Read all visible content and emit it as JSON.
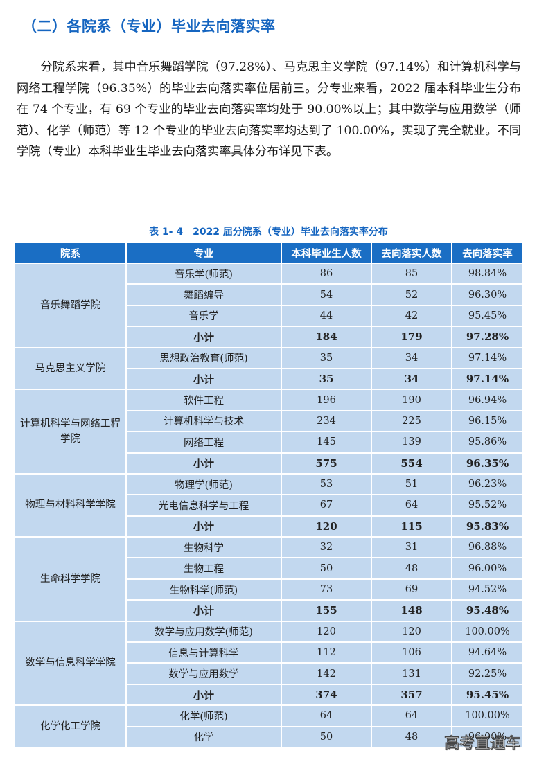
{
  "heading": "（二）各院系（专业）毕业去向落实率",
  "paragraph": "分院系来看，其中音乐舞蹈学院（97.28%）、马克思主义学院（97.14%）和计算机科学与网络工程学院（96.35%）的毕业去向落实率位居前三。分专业来看，2022 届本科毕业生分布在 74 个专业，有 69 个专业的毕业去向落实率均处于 90.00%以上；其中数学与应用数学（师范）、化学（师范）等 12 个专业的毕业去向落实率均达到了 100.00%，实现了完全就业。不同学院（专业）本科毕业生毕业去向落实率具体分布详见下表。",
  "table": {
    "caption": "表 1- 4　2022 届分院系（专业）毕业去向落实率分布",
    "headers": [
      "院系",
      "专业",
      "本科毕业生人数",
      "去向落实人数",
      "去向落实率"
    ],
    "groups": [
      {
        "college": "音乐舞蹈学院",
        "rows": [
          {
            "major": "音乐学(师范)",
            "grads": "86",
            "placed": "85",
            "rate": "98.84%"
          },
          {
            "major": "舞蹈编导",
            "grads": "54",
            "placed": "52",
            "rate": "96.30%"
          },
          {
            "major": "音乐学",
            "grads": "44",
            "placed": "42",
            "rate": "95.45%"
          },
          {
            "major": "小计",
            "grads": "184",
            "placed": "179",
            "rate": "97.28%",
            "subtotal": true
          }
        ]
      },
      {
        "college": "马克思主义学院",
        "rows": [
          {
            "major": "思想政治教育(师范)",
            "grads": "35",
            "placed": "34",
            "rate": "97.14%"
          },
          {
            "major": "小计",
            "grads": "35",
            "placed": "34",
            "rate": "97.14%",
            "subtotal": true
          }
        ]
      },
      {
        "college": "计算机科学与网络工程学院",
        "rows": [
          {
            "major": "软件工程",
            "grads": "196",
            "placed": "190",
            "rate": "96.94%"
          },
          {
            "major": "计算机科学与技术",
            "grads": "234",
            "placed": "225",
            "rate": "96.15%"
          },
          {
            "major": "网络工程",
            "grads": "145",
            "placed": "139",
            "rate": "95.86%"
          },
          {
            "major": "小计",
            "grads": "575",
            "placed": "554",
            "rate": "96.35%",
            "subtotal": true
          }
        ]
      },
      {
        "college": "物理与材料科学学院",
        "rows": [
          {
            "major": "物理学(师范)",
            "grads": "53",
            "placed": "51",
            "rate": "96.23%"
          },
          {
            "major": "光电信息科学与工程",
            "grads": "67",
            "placed": "64",
            "rate": "95.52%"
          },
          {
            "major": "小计",
            "grads": "120",
            "placed": "115",
            "rate": "95.83%",
            "subtotal": true
          }
        ]
      },
      {
        "college": "生命科学学院",
        "rows": [
          {
            "major": "生物科学",
            "grads": "32",
            "placed": "31",
            "rate": "96.88%"
          },
          {
            "major": "生物工程",
            "grads": "50",
            "placed": "48",
            "rate": "96.00%"
          },
          {
            "major": "生物科学(师范)",
            "grads": "73",
            "placed": "69",
            "rate": "94.52%"
          },
          {
            "major": "小计",
            "grads": "155",
            "placed": "148",
            "rate": "95.48%",
            "subtotal": true
          }
        ]
      },
      {
        "college": "数学与信息科学学院",
        "rows": [
          {
            "major": "数学与应用数学(师范)",
            "grads": "120",
            "placed": "120",
            "rate": "100.00%"
          },
          {
            "major": "信息与计算科学",
            "grads": "112",
            "placed": "106",
            "rate": "94.64%"
          },
          {
            "major": "数学与应用数学",
            "grads": "142",
            "placed": "131",
            "rate": "92.25%"
          },
          {
            "major": "小计",
            "grads": "374",
            "placed": "357",
            "rate": "95.45%",
            "subtotal": true
          }
        ]
      },
      {
        "college": "化学化工学院",
        "rows": [
          {
            "major": "化学(师范)",
            "grads": "64",
            "placed": "64",
            "rate": "100.00%"
          },
          {
            "major": "化学",
            "grads": "50",
            "placed": "48",
            "rate": "96.00%"
          }
        ]
      }
    ]
  },
  "watermark": "高考直通车",
  "colors": {
    "accent": "#1565c0",
    "header_bg": "#1a6ec4",
    "cell_bg": "#c2d8ef"
  }
}
